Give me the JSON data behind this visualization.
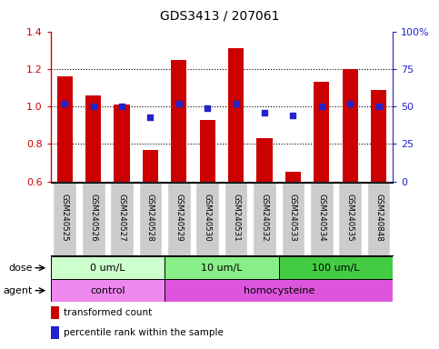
{
  "title": "GDS3413 / 207061",
  "samples": [
    "GSM240525",
    "GSM240526",
    "GSM240527",
    "GSM240528",
    "GSM240529",
    "GSM240530",
    "GSM240531",
    "GSM240532",
    "GSM240533",
    "GSM240534",
    "GSM240535",
    "GSM240848"
  ],
  "transformed_count": [
    1.16,
    1.06,
    1.01,
    0.77,
    1.25,
    0.93,
    1.31,
    0.83,
    0.65,
    1.13,
    1.2,
    1.09
  ],
  "percentile_rank": [
    52,
    50,
    50,
    43,
    52,
    49,
    52,
    46,
    44,
    50,
    52,
    50
  ],
  "ylim_left": [
    0.6,
    1.4
  ],
  "ylim_right": [
    0,
    100
  ],
  "yticks_left": [
    0.6,
    0.8,
    1.0,
    1.2,
    1.4
  ],
  "yticks_right": [
    0,
    25,
    50,
    75,
    100
  ],
  "bar_color": "#cc0000",
  "dot_color": "#2222cc",
  "dose_groups": [
    {
      "label": "0 um/L",
      "start": 0,
      "end": 4,
      "color": "#ccffcc"
    },
    {
      "label": "10 um/L",
      "start": 4,
      "end": 8,
      "color": "#88ee88"
    },
    {
      "label": "100 um/L",
      "start": 8,
      "end": 12,
      "color": "#44cc44"
    }
  ],
  "agent_groups": [
    {
      "label": "control",
      "start": 0,
      "end": 4,
      "color": "#ee88ee"
    },
    {
      "label": "homocysteine",
      "start": 4,
      "end": 12,
      "color": "#dd55dd"
    }
  ],
  "dose_label": "dose",
  "agent_label": "agent",
  "legend_bar_label": "transformed count",
  "legend_dot_label": "percentile rank within the sample",
  "bg_color": "#ffffff",
  "sample_box_color": "#cccccc",
  "sample_box_edge": "#ffffff",
  "left_axis_color": "#cc0000",
  "right_axis_color": "#2222cc",
  "grid_yticks": [
    0.8,
    1.0,
    1.2
  ]
}
